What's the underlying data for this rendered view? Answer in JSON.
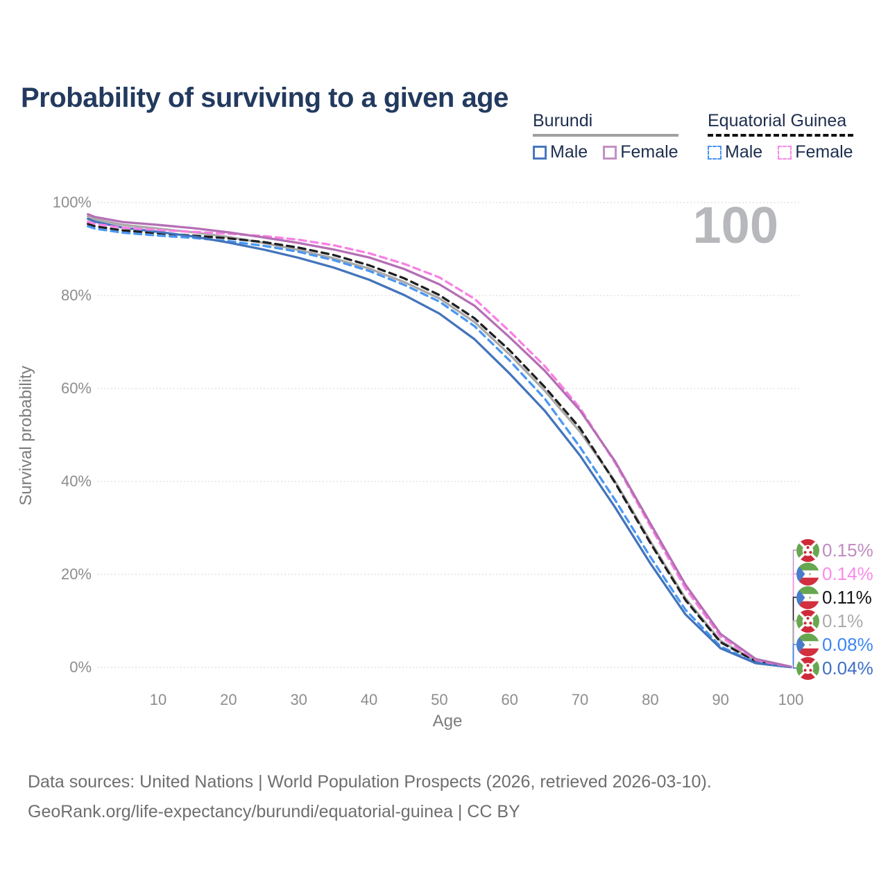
{
  "title": "Probability of surviving to a given age",
  "legend": {
    "groups": [
      {
        "label": "Burundi",
        "line_style": "solid",
        "underline_color": "#a0a0a0",
        "items": [
          {
            "label": "Male",
            "color": "#4678bd"
          },
          {
            "label": "Female",
            "color": "#c48fc4"
          }
        ]
      },
      {
        "label": "Equatorial Guinea",
        "line_style": "dashed",
        "underline_color": "#111111",
        "items": [
          {
            "label": "Male",
            "color": "#4695f2"
          },
          {
            "label": "Female",
            "color": "#f98ae4"
          }
        ]
      }
    ]
  },
  "chart_data": {
    "type": "line",
    "title": "Probability of surviving to a given age",
    "xlabel": "Age",
    "ylabel": "Survival probability",
    "xlim": [
      0,
      100
    ],
    "ylim": [
      0,
      100
    ],
    "grid": true,
    "xticks": [
      10,
      20,
      30,
      40,
      50,
      60,
      70,
      80,
      90,
      100
    ],
    "yticks": [
      {
        "value": 0,
        "label": "0%"
      },
      {
        "value": 20,
        "label": "20%"
      },
      {
        "value": 40,
        "label": "40%"
      },
      {
        "value": 60,
        "label": "60%"
      },
      {
        "value": 80,
        "label": "80%"
      },
      {
        "value": 100,
        "label": "100%"
      }
    ],
    "watermark": "100",
    "legend_position": "top-right",
    "series": [
      {
        "name": "Burundi Female",
        "country": "burundi",
        "sex": "female",
        "color": "#b46fb4",
        "dash": "solid",
        "end_label": "0.15%",
        "end_label_color": "#c08cc0",
        "points": [
          [
            0,
            97.5
          ],
          [
            1,
            96.9
          ],
          [
            5,
            95.8
          ],
          [
            10,
            95.2
          ],
          [
            15,
            94.5
          ],
          [
            20,
            93.6
          ],
          [
            25,
            92.5
          ],
          [
            30,
            91.3
          ],
          [
            35,
            89.9
          ],
          [
            40,
            88.2
          ],
          [
            45,
            85.7
          ],
          [
            50,
            82.4
          ],
          [
            55,
            77.8
          ],
          [
            60,
            71.0
          ],
          [
            65,
            63.8
          ],
          [
            70,
            55.3
          ],
          [
            75,
            44.3
          ],
          [
            80,
            31.0
          ],
          [
            85,
            17.8
          ],
          [
            90,
            7.2
          ],
          [
            95,
            1.8
          ],
          [
            100,
            0.15
          ]
        ]
      },
      {
        "name": "Equatorial Guinea Female",
        "country": "equatorial-guinea",
        "sex": "female",
        "color": "#f980e3",
        "dash": "dashed",
        "end_label": "0.14%",
        "end_label_color": "#fb8ae8",
        "points": [
          [
            0,
            95.9
          ],
          [
            1,
            95.4
          ],
          [
            5,
            94.6
          ],
          [
            10,
            94.1
          ],
          [
            15,
            93.7
          ],
          [
            20,
            93.3
          ],
          [
            25,
            92.8
          ],
          [
            30,
            92.0
          ],
          [
            35,
            90.8
          ],
          [
            40,
            89.1
          ],
          [
            45,
            86.8
          ],
          [
            50,
            83.9
          ],
          [
            55,
            79.3
          ],
          [
            60,
            72.3
          ],
          [
            65,
            64.8
          ],
          [
            70,
            55.8
          ],
          [
            75,
            44.0
          ],
          [
            80,
            30.4
          ],
          [
            85,
            17.0
          ],
          [
            90,
            6.6
          ],
          [
            95,
            1.6
          ],
          [
            100,
            0.14
          ]
        ]
      },
      {
        "name": "Equatorial Guinea",
        "country": "equatorial-guinea",
        "sex": "all",
        "color": "#1f1f1f",
        "dash": "dashed",
        "end_label": "0.11%",
        "end_label_color": "#141414",
        "points": [
          [
            0,
            95.4
          ],
          [
            1,
            94.9
          ],
          [
            5,
            94.0
          ],
          [
            10,
            93.4
          ],
          [
            15,
            92.9
          ],
          [
            20,
            92.3
          ],
          [
            25,
            91.5
          ],
          [
            30,
            90.3
          ],
          [
            35,
            88.7
          ],
          [
            40,
            86.5
          ],
          [
            45,
            83.7
          ],
          [
            50,
            80.1
          ],
          [
            55,
            75.1
          ],
          [
            60,
            68.2
          ],
          [
            65,
            60.3
          ],
          [
            70,
            51.5
          ],
          [
            75,
            39.7
          ],
          [
            80,
            26.8
          ],
          [
            85,
            14.5
          ],
          [
            90,
            5.4
          ],
          [
            95,
            1.3
          ],
          [
            100,
            0.11
          ]
        ]
      },
      {
        "name": "Burundi",
        "country": "burundi",
        "sex": "all",
        "color": "#a9a9a9",
        "dash": "solid",
        "end_label": "0.1%",
        "end_label_color": "#ababab",
        "points": [
          [
            0,
            97.0
          ],
          [
            1,
            96.4
          ],
          [
            5,
            95.2
          ],
          [
            10,
            94.4
          ],
          [
            15,
            93.6
          ],
          [
            20,
            92.6
          ],
          [
            25,
            91.3
          ],
          [
            30,
            89.8
          ],
          [
            35,
            88.0
          ],
          [
            40,
            85.8
          ],
          [
            45,
            82.9
          ],
          [
            50,
            79.4
          ],
          [
            55,
            74.3
          ],
          [
            60,
            67.3
          ],
          [
            65,
            59.5
          ],
          [
            70,
            50.7
          ],
          [
            75,
            40.0
          ],
          [
            80,
            27.2
          ],
          [
            85,
            14.9
          ],
          [
            90,
            5.7
          ],
          [
            95,
            1.4
          ],
          [
            100,
            0.1
          ]
        ]
      },
      {
        "name": "Equatorial Guinea Male",
        "country": "equatorial-guinea",
        "sex": "male",
        "color": "#4a97f4",
        "dash": "dashed",
        "end_label": "0.08%",
        "end_label_color": "#3d86f2",
        "points": [
          [
            0,
            94.9
          ],
          [
            1,
            94.4
          ],
          [
            5,
            93.5
          ],
          [
            10,
            92.9
          ],
          [
            15,
            92.4
          ],
          [
            20,
            91.7
          ],
          [
            25,
            90.7
          ],
          [
            30,
            89.4
          ],
          [
            35,
            87.6
          ],
          [
            40,
            85.3
          ],
          [
            45,
            82.3
          ],
          [
            50,
            78.7
          ],
          [
            55,
            73.4
          ],
          [
            60,
            66.0
          ],
          [
            65,
            57.8
          ],
          [
            70,
            47.4
          ],
          [
            75,
            36.0
          ],
          [
            80,
            23.8
          ],
          [
            85,
            12.4
          ],
          [
            90,
            4.5
          ],
          [
            95,
            1.0
          ],
          [
            100,
            0.08
          ]
        ]
      },
      {
        "name": "Burundi Male",
        "country": "burundi",
        "sex": "male",
        "color": "#4374bb",
        "dash": "solid",
        "end_label": "0.04%",
        "end_label_color": "#3f6fc5",
        "points": [
          [
            0,
            96.5
          ],
          [
            1,
            95.9
          ],
          [
            5,
            94.6
          ],
          [
            10,
            93.7
          ],
          [
            15,
            92.7
          ],
          [
            20,
            91.4
          ],
          [
            25,
            89.9
          ],
          [
            30,
            88.1
          ],
          [
            35,
            86.0
          ],
          [
            40,
            83.4
          ],
          [
            45,
            80.1
          ],
          [
            50,
            76.1
          ],
          [
            55,
            70.6
          ],
          [
            60,
            63.2
          ],
          [
            65,
            55.2
          ],
          [
            70,
            45.6
          ],
          [
            75,
            34.4
          ],
          [
            80,
            22.4
          ],
          [
            85,
            11.4
          ],
          [
            90,
            4.1
          ],
          [
            95,
            0.9
          ],
          [
            100,
            0.04
          ]
        ]
      }
    ]
  },
  "footer": {
    "line1": "Data sources: United Nations | World Population Prospects (2026, retrieved 2026-03-10).",
    "line2": "GeoRank.org/life-expectancy/burundi/equatorial-guinea | CC BY"
  }
}
